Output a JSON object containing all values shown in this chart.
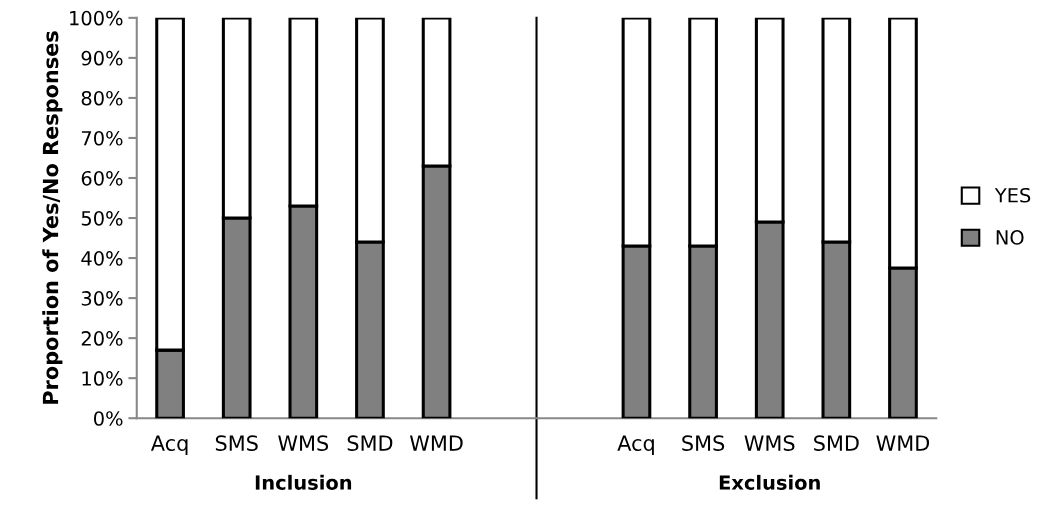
{
  "chart_data": {
    "type": "bar",
    "stacked": true,
    "ylabel": "Proportion of Yes/No Responses",
    "categories": [
      "Acq",
      "SMS",
      "WMS",
      "SMD",
      "WMD",
      null,
      null,
      "Acq",
      "SMS",
      "WMS",
      "SMD",
      "WMD"
    ],
    "series": [
      {
        "name": "NO",
        "color": "#808080",
        "values": [
          17,
          50,
          53,
          44,
          63,
          null,
          null,
          43,
          43,
          49,
          44,
          37.5
        ]
      },
      {
        "name": "YES",
        "color": "#ffffff",
        "values": [
          83,
          50,
          47,
          56,
          37,
          null,
          null,
          57,
          57,
          51,
          56,
          62.5
        ]
      }
    ],
    "ylim": [
      0,
      100
    ],
    "yticks": [
      {
        "value": 0,
        "label": "0%"
      },
      {
        "value": 10,
        "label": "10%"
      },
      {
        "value": 20,
        "label": "20%"
      },
      {
        "value": 30,
        "label": "30%"
      },
      {
        "value": 40,
        "label": "40%"
      },
      {
        "value": 50,
        "label": "50%"
      },
      {
        "value": 60,
        "label": "60%"
      },
      {
        "value": 70,
        "label": "70%"
      },
      {
        "value": 80,
        "label": "80%"
      },
      {
        "value": 90,
        "label": "90%"
      },
      {
        "value": 100,
        "label": "100%"
      }
    ],
    "annotations": [
      "Inclusion",
      "Exclusion"
    ],
    "legend": "right",
    "grid": false
  }
}
